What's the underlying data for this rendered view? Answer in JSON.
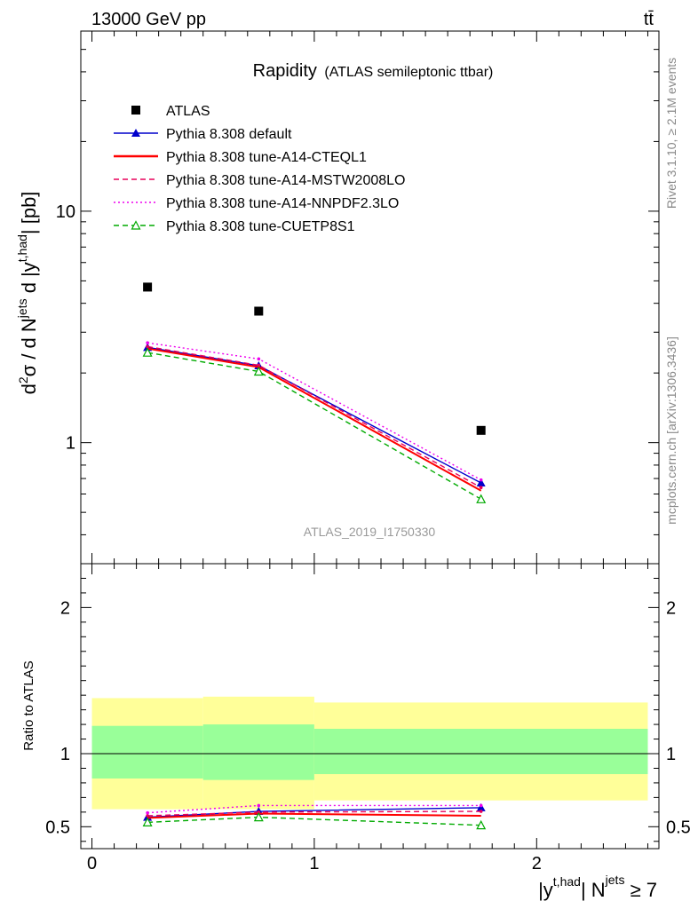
{
  "header": {
    "energy_label": "13000 GeV pp",
    "process_label": "tt̄"
  },
  "side_labels": {
    "rivet": "Rivet 3.1.10, ≥ 2.1M events",
    "mcplots": "mcplots.cern.ch [arXiv:1306.3436]"
  },
  "chart_data": {
    "type": "line",
    "title": "Rapidity",
    "subtitle": "(ATLAS semileptonic ttbar)",
    "analysis_label": "ATLAS_2019_I1750330",
    "ylabel_main": "d²σ / d Nʲᵉᵗˢ d |yᵗ,ʰᵃᵈ| [pb]",
    "ylabel_main_parts": {
      "d1": "d",
      "sup2": "2",
      "sigma": "σ / d N",
      "jets": "jets",
      "d2": " d |y",
      "thad": "t,had",
      "unit": "| [pb]"
    },
    "ylabel_ratio": "Ratio to ATLAS",
    "xlabel": "|yᵗ,ʰᵃᵈ| Nʲᵉᵗˢ ≥ 7",
    "xlabel_parts": {
      "y": "|y",
      "thad": "t,had",
      "n": "| N",
      "jets": "jets",
      "cond": " ≥ 7"
    },
    "x_range": [
      -0.05,
      2.55
    ],
    "y_range_main": [
      0.3,
      60
    ],
    "y_scale_main": "log",
    "y_range_ratio": [
      0.35,
      2.3
    ],
    "x_ticks": [
      "0",
      "1",
      "2"
    ],
    "x_tick_values": [
      0,
      1,
      2
    ],
    "y_ticks_main": [
      "1",
      "10"
    ],
    "y_tick_values_main": [
      1,
      10
    ],
    "y_ticks_ratio": [
      "0.5",
      "1",
      "2"
    ],
    "y_tick_values_ratio": [
      0.5,
      1,
      2
    ],
    "bins": [
      [
        0,
        0.5
      ],
      [
        0.5,
        1.0
      ],
      [
        1.0,
        2.5
      ]
    ],
    "x": [
      0.25,
      0.75,
      1.75
    ],
    "data": {
      "name": "ATLAS",
      "values": [
        4.7,
        3.7,
        1.13
      ]
    },
    "ratio_bands": {
      "yellow": [
        [
          0.62,
          1.38
        ],
        [
          0.62,
          1.39
        ],
        [
          0.68,
          1.35
        ]
      ],
      "green": [
        [
          0.83,
          1.19
        ],
        [
          0.82,
          1.2
        ],
        [
          0.86,
          1.17
        ]
      ]
    },
    "legend_position": "top-left",
    "series": [
      {
        "name": "Pythia 8.308 default",
        "color": "#0000cc",
        "dash": "solid",
        "marker": "triangle-filled",
        "values": [
          2.58,
          2.15,
          0.67
        ],
        "ratio": [
          0.565,
          0.605,
          0.63
        ]
      },
      {
        "name": "Pythia 8.308 tune-A14-CTEQL1",
        "color": "#ff0000",
        "dash": "solid",
        "marker": "none",
        "values": [
          2.55,
          2.12,
          0.62
        ],
        "ratio": [
          0.56,
          0.59,
          0.575
        ]
      },
      {
        "name": "Pythia 8.308 tune-A14-MSTW2008LO",
        "color": "#e8005a",
        "dash": "dashed",
        "marker": "dot",
        "values": [
          2.6,
          2.16,
          0.64
        ],
        "ratio": [
          0.575,
          0.6,
          0.605
        ]
      },
      {
        "name": "Pythia 8.308 tune-A14-NNPDF2.3LO",
        "color": "#ee00ee",
        "dash": "dotted",
        "marker": "dot",
        "values": [
          2.7,
          2.3,
          0.69
        ],
        "ratio": [
          0.595,
          0.645,
          0.645
        ]
      },
      {
        "name": "Pythia 8.308 tune-CUETP8S1",
        "color": "#00aa00",
        "dash": "dashed",
        "marker": "triangle-open",
        "values": [
          2.45,
          2.03,
          0.57
        ],
        "ratio": [
          0.53,
          0.565,
          0.51
        ]
      }
    ]
  }
}
